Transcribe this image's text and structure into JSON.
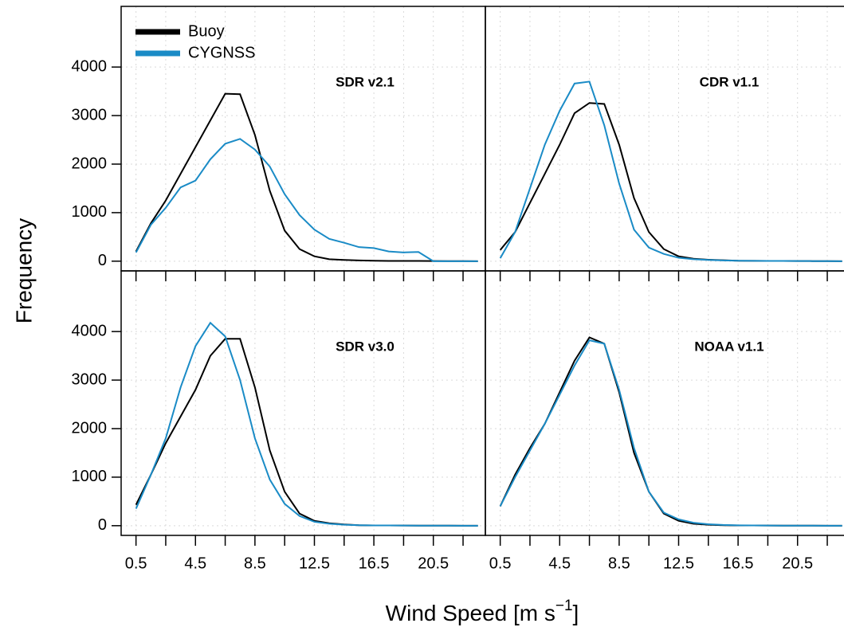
{
  "chart_data": [
    {
      "type": "line",
      "title": "SDR v2.1",
      "legend": "upper left",
      "grid": true,
      "show_xtick_labels": false,
      "show_ytick_labels": true,
      "x": [
        0.5,
        1.5,
        2.5,
        3.5,
        4.5,
        5.5,
        6.5,
        7.5,
        8.5,
        9.5,
        10.5,
        11.5,
        12.5,
        13.5,
        14.5,
        15.5,
        16.5,
        17.5,
        18.5,
        19.5,
        20.5,
        21.5,
        22.5,
        23.5
      ],
      "xlim": [
        -0.5,
        24
      ],
      "xticks": [
        0.5,
        4.5,
        8.5,
        12.5,
        16.5,
        20.5
      ],
      "minor_xticks": [
        2.5,
        6.5,
        10.5,
        14.5,
        18.5,
        22.5
      ],
      "ylim": [
        -200,
        5250
      ],
      "yticks": [
        0,
        1000,
        2000,
        3000,
        4000
      ],
      "series": [
        {
          "name": "Buoy",
          "color": "#000000",
          "values": [
            200,
            780,
            1250,
            1800,
            2350,
            2900,
            3450,
            3440,
            2600,
            1450,
            630,
            250,
            100,
            40,
            25,
            15,
            10,
            5,
            5,
            5,
            3,
            2,
            1,
            0
          ]
        },
        {
          "name": "CYGNSS",
          "color": "#1a8bc6",
          "values": [
            180,
            750,
            1100,
            1520,
            1660,
            2100,
            2420,
            2520,
            2300,
            1950,
            1380,
            950,
            650,
            460,
            380,
            290,
            270,
            200,
            180,
            190,
            0,
            0,
            0,
            0
          ]
        }
      ]
    },
    {
      "type": "line",
      "title": "CDR v1.1",
      "grid": true,
      "show_xtick_labels": false,
      "show_ytick_labels": false,
      "x": [
        0.5,
        1.5,
        2.5,
        3.5,
        4.5,
        5.5,
        6.5,
        7.5,
        8.5,
        9.5,
        10.5,
        11.5,
        12.5,
        13.5,
        14.5,
        15.5,
        16.5,
        17.5,
        18.5,
        19.5,
        20.5,
        21.5,
        22.5,
        23.5
      ],
      "xlim": [
        -0.5,
        24
      ],
      "xticks": [
        0.5,
        4.5,
        8.5,
        12.5,
        16.5,
        20.5
      ],
      "minor_xticks": [
        2.5,
        6.5,
        10.5,
        14.5,
        18.5,
        22.5
      ],
      "ylim": [
        -200,
        5250
      ],
      "yticks": [
        0,
        1000,
        2000,
        3000,
        4000
      ],
      "series": [
        {
          "name": "Buoy",
          "color": "#000000",
          "values": [
            230,
            600,
            1200,
            1800,
            2400,
            3050,
            3260,
            3240,
            2400,
            1300,
            600,
            250,
            100,
            50,
            30,
            20,
            10,
            8,
            5,
            5,
            3,
            2,
            1,
            0
          ]
        },
        {
          "name": "CYGNSS",
          "color": "#1a8bc6",
          "values": [
            60,
            600,
            1500,
            2400,
            3100,
            3660,
            3700,
            2800,
            1600,
            650,
            280,
            150,
            70,
            40,
            25,
            15,
            10,
            8,
            5,
            5,
            3,
            2,
            1,
            0
          ]
        }
      ]
    },
    {
      "type": "line",
      "title": "SDR v3.0",
      "grid": true,
      "show_xtick_labels": true,
      "show_ytick_labels": true,
      "x": [
        0.5,
        1.5,
        2.5,
        3.5,
        4.5,
        5.5,
        6.5,
        7.5,
        8.5,
        9.5,
        10.5,
        11.5,
        12.5,
        13.5,
        14.5,
        15.5,
        16.5,
        17.5,
        18.5,
        19.5,
        20.5,
        21.5,
        22.5,
        23.5
      ],
      "xlim": [
        -0.5,
        24
      ],
      "xticks": [
        0.5,
        4.5,
        8.5,
        12.5,
        16.5,
        20.5
      ],
      "minor_xticks": [
        2.5,
        6.5,
        10.5,
        14.5,
        18.5,
        22.5
      ],
      "ylim": [
        -200,
        5250
      ],
      "yticks": [
        0,
        1000,
        2000,
        3000,
        4000
      ],
      "series": [
        {
          "name": "Buoy",
          "color": "#000000",
          "values": [
            430,
            1050,
            1700,
            2250,
            2800,
            3500,
            3850,
            3850,
            2850,
            1550,
            700,
            250,
            100,
            50,
            25,
            10,
            5,
            5,
            3,
            2,
            1,
            1,
            0,
            0
          ]
        },
        {
          "name": "CYGNSS",
          "color": "#1a8bc6",
          "values": [
            350,
            1050,
            1800,
            2850,
            3700,
            4180,
            3900,
            3000,
            1800,
            950,
            450,
            200,
            80,
            40,
            20,
            10,
            5,
            5,
            3,
            2,
            1,
            1,
            0,
            0
          ]
        }
      ]
    },
    {
      "type": "line",
      "title": "NOAA v1.1",
      "grid": true,
      "show_xtick_labels": true,
      "show_ytick_labels": false,
      "x": [
        0.5,
        1.5,
        2.5,
        3.5,
        4.5,
        5.5,
        6.5,
        7.5,
        8.5,
        9.5,
        10.5,
        11.5,
        12.5,
        13.5,
        14.5,
        15.5,
        16.5,
        17.5,
        18.5,
        19.5,
        20.5,
        21.5,
        22.5,
        23.5
      ],
      "xlim": [
        -0.5,
        24
      ],
      "xticks": [
        0.5,
        4.5,
        8.5,
        12.5,
        16.5,
        20.5
      ],
      "minor_xticks": [
        2.5,
        6.5,
        10.5,
        14.5,
        18.5,
        22.5
      ],
      "ylim": [
        -200,
        5250
      ],
      "yticks": [
        0,
        1000,
        2000,
        3000,
        4000
      ],
      "series": [
        {
          "name": "Buoy",
          "color": "#000000",
          "values": [
            400,
            1050,
            1600,
            2100,
            2750,
            3400,
            3880,
            3750,
            2750,
            1500,
            700,
            250,
            100,
            40,
            20,
            10,
            5,
            5,
            3,
            2,
            1,
            1,
            0,
            0
          ]
        },
        {
          "name": "CYGNSS",
          "color": "#1a8bc6",
          "values": [
            400,
            1000,
            1550,
            2100,
            2700,
            3300,
            3820,
            3750,
            2800,
            1600,
            700,
            270,
            130,
            60,
            30,
            15,
            8,
            5,
            3,
            2,
            1,
            1,
            0,
            0
          ]
        }
      ]
    }
  ],
  "x_label": {
    "text": "Wind Speed [m s",
    "superscript": "−1",
    "suffix": "]"
  },
  "y_label": "Frequency"
}
